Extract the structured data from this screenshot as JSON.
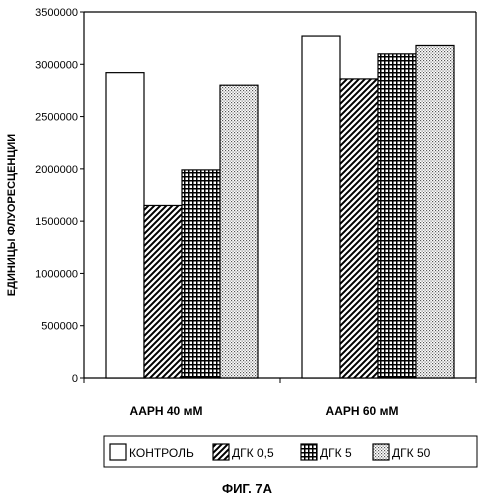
{
  "chart_data": {
    "type": "bar",
    "ylabel": "ЕДИНИЦЫ ФЛУОРЕСЦЕНЦИИ",
    "xlabel": "",
    "ylim": [
      0,
      3500000
    ],
    "yticks": [
      0,
      500000,
      1000000,
      1500000,
      2000000,
      2500000,
      3000000,
      3500000
    ],
    "ytick_labels": [
      "0",
      "500000",
      "1000000",
      "1500000",
      "2000000",
      "2500000",
      "3000000",
      "3500000"
    ],
    "categories": [
      "AAPH 40 мМ",
      "AAPH 60 мМ"
    ],
    "series": [
      {
        "name": "КОНТРОЛЬ",
        "values": [
          2920000,
          3270000
        ],
        "pattern": "white"
      },
      {
        "name": "ДГК 0,5",
        "values": [
          1650000,
          2860000
        ],
        "pattern": "diagonal"
      },
      {
        "name": "ДГК 5",
        "values": [
          1990000,
          3100000
        ],
        "pattern": "grid"
      },
      {
        "name": "ДГК 50",
        "values": [
          2800000,
          3180000
        ],
        "pattern": "dots"
      }
    ],
    "legend_position": "bottom",
    "grid": false
  },
  "caption": "ФИГ. 7А"
}
